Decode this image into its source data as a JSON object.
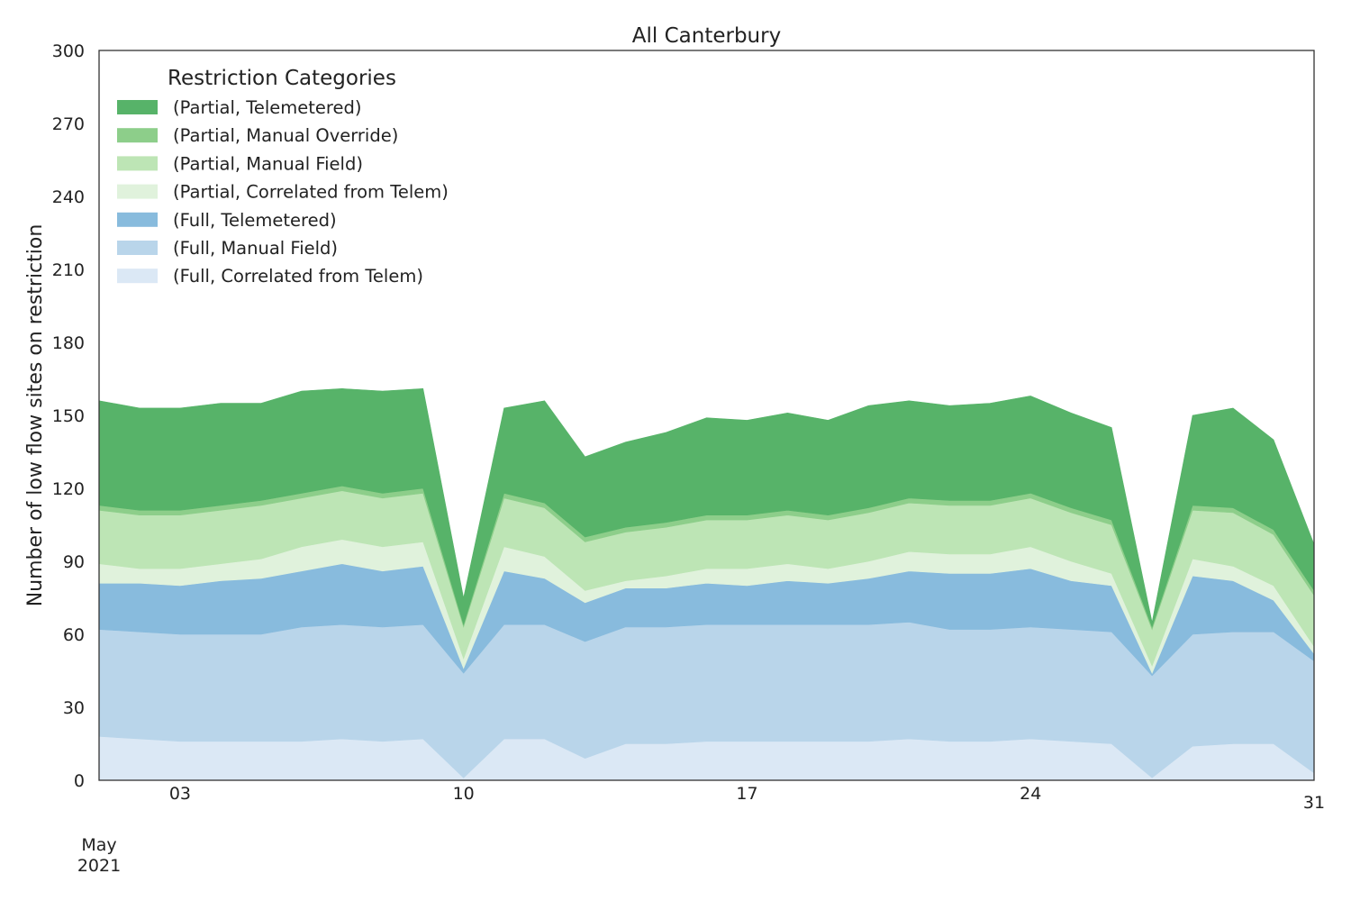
{
  "chart_data": {
    "type": "area",
    "stacked": true,
    "title": "All Canterbury",
    "xlabel": "",
    "ylabel": "Number of low flow sites on restriction",
    "ylim": [
      0,
      300
    ],
    "xlim": [
      "2021-05-01",
      "2021-05-31"
    ],
    "grid": false,
    "legend_placement": "top-left",
    "legend_title": "Restriction Categories",
    "y_ticks": [
      "0",
      "30",
      "60",
      "90",
      "120",
      "150",
      "180",
      "210",
      "240",
      "270",
      "300"
    ],
    "x_ticks": [
      {
        "date": "2021-05-03",
        "label": "03"
      },
      {
        "date": "2021-05-10",
        "label": "10"
      },
      {
        "date": "2021-05-17",
        "label": "17"
      },
      {
        "date": "2021-05-24",
        "label": "24"
      },
      {
        "date": "2021-05-31",
        "label": "31"
      }
    ],
    "x_month_label": "May",
    "x_year_label": "2021",
    "x": [
      "2021-05-01",
      "2021-05-02",
      "2021-05-03",
      "2021-05-04",
      "2021-05-05",
      "2021-05-06",
      "2021-05-07",
      "2021-05-08",
      "2021-05-09",
      "2021-05-10",
      "2021-05-11",
      "2021-05-12",
      "2021-05-13",
      "2021-05-14",
      "2021-05-15",
      "2021-05-16",
      "2021-05-17",
      "2021-05-18",
      "2021-05-19",
      "2021-05-20",
      "2021-05-21",
      "2021-05-22",
      "2021-05-23",
      "2021-05-24",
      "2021-05-25",
      "2021-05-26",
      "2021-05-27",
      "2021-05-28",
      "2021-05-29",
      "2021-05-30",
      "2021-05-31"
    ],
    "series": [
      {
        "name": "(Full, Correlated from Telem)",
        "color": "#dbe8f5",
        "values": [
          18,
          17,
          16,
          16,
          16,
          16,
          17,
          16,
          17,
          1,
          17,
          17,
          9,
          15,
          15,
          16,
          16,
          16,
          16,
          16,
          17,
          16,
          16,
          17,
          16,
          15,
          1,
          14,
          15,
          15,
          3
        ]
      },
      {
        "name": "(Full, Manual Field)",
        "color": "#b9d5ea",
        "values": [
          44,
          44,
          44,
          44,
          44,
          47,
          47,
          47,
          47,
          43,
          47,
          47,
          48,
          48,
          48,
          48,
          48,
          48,
          48,
          48,
          48,
          46,
          46,
          46,
          46,
          46,
          42,
          46,
          46,
          46,
          46
        ]
      },
      {
        "name": "(Full, Telemetered)",
        "color": "#88bbdd",
        "values": [
          19,
          20,
          20,
          22,
          23,
          23,
          25,
          23,
          24,
          2,
          22,
          19,
          16,
          16,
          16,
          17,
          16,
          18,
          17,
          19,
          21,
          23,
          23,
          24,
          20,
          19,
          1,
          24,
          21,
          13,
          3
        ]
      },
      {
        "name": "(Partial, Correlated from Telem)",
        "color": "#e0f2dc",
        "values": [
          8,
          6,
          7,
          7,
          8,
          10,
          10,
          10,
          10,
          4,
          10,
          9,
          5,
          3,
          5,
          6,
          7,
          7,
          6,
          7,
          8,
          8,
          8,
          9,
          8,
          5,
          3,
          7,
          6,
          6,
          3
        ]
      },
      {
        "name": "(Partial, Manual Field)",
        "color": "#bde5b5",
        "values": [
          22,
          22,
          22,
          22,
          22,
          20,
          20,
          20,
          20,
          13,
          20,
          20,
          20,
          20,
          20,
          20,
          20,
          20,
          20,
          20,
          20,
          20,
          20,
          20,
          20,
          20,
          15,
          20,
          22,
          21,
          21
        ]
      },
      {
        "name": "(Partial, Manual Override)",
        "color": "#8dce8a",
        "values": [
          2,
          2,
          2,
          2,
          2,
          2,
          2,
          2,
          2,
          1,
          2,
          2,
          2,
          2,
          2,
          2,
          2,
          2,
          2,
          2,
          2,
          2,
          2,
          2,
          2,
          2,
          1,
          2,
          2,
          2,
          2
        ]
      },
      {
        "name": "(Partial, Telemetered)",
        "color": "#57b369",
        "values": [
          43,
          42,
          42,
          42,
          40,
          42,
          40,
          42,
          41,
          11,
          35,
          42,
          33,
          35,
          37,
          40,
          39,
          40,
          39,
          42,
          40,
          39,
          40,
          40,
          39,
          38,
          2,
          37,
          41,
          37,
          19
        ]
      }
    ]
  }
}
